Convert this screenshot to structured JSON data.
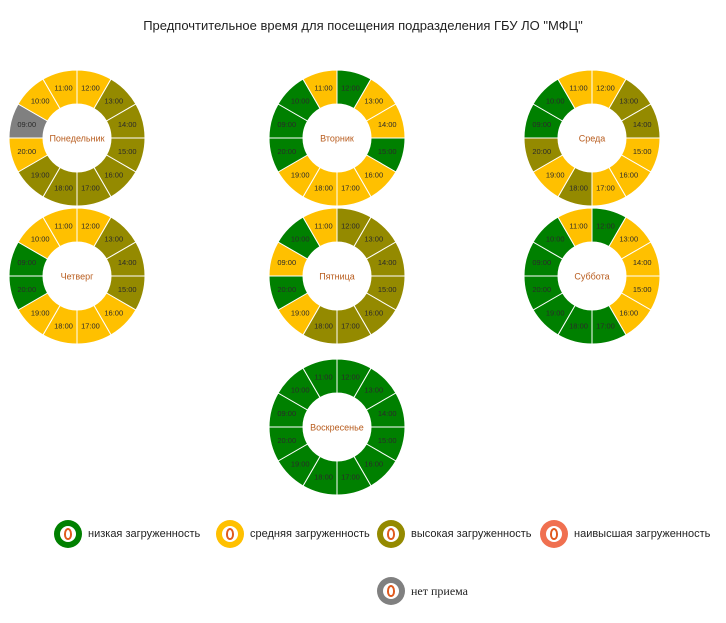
{
  "chart_title": "Предпочтительное время для посещения подразделения ГБУ ЛО \"МФЦ\"",
  "colors": {
    "low": "#008000",
    "medium": "#ffc000",
    "high": "#948a00",
    "highest": "#f07050",
    "closed": "#808080"
  },
  "legend": [
    {
      "key": "low",
      "label": "низкая загруженность"
    },
    {
      "key": "medium",
      "label": "средняя загруженность"
    },
    {
      "key": "high",
      "label": "высокая загруженность"
    },
    {
      "key": "highest",
      "label": "наивысшая загруженность"
    },
    {
      "key": "closed",
      "label": "нет приема"
    }
  ],
  "chart_data": [
    {
      "type": "pie",
      "name": "Понедельник",
      "slices": [
        {
          "hour": "12:00",
          "load": "medium"
        },
        {
          "hour": "13:00",
          "load": "high"
        },
        {
          "hour": "14:00",
          "load": "high"
        },
        {
          "hour": "15:00",
          "load": "high"
        },
        {
          "hour": "16:00",
          "load": "high"
        },
        {
          "hour": "17:00",
          "load": "high"
        },
        {
          "hour": "18:00",
          "load": "high"
        },
        {
          "hour": "19:00",
          "load": "high"
        },
        {
          "hour": "20:00",
          "load": "medium"
        },
        {
          "hour": "09:00",
          "load": "closed"
        },
        {
          "hour": "10:00",
          "load": "medium"
        },
        {
          "hour": "11:00",
          "load": "medium"
        }
      ]
    },
    {
      "type": "pie",
      "name": "Вторник",
      "slices": [
        {
          "hour": "12:00",
          "load": "low"
        },
        {
          "hour": "13:00",
          "load": "medium"
        },
        {
          "hour": "14:00",
          "load": "medium"
        },
        {
          "hour": "15:00",
          "load": "low"
        },
        {
          "hour": "16:00",
          "load": "medium"
        },
        {
          "hour": "17:00",
          "load": "medium"
        },
        {
          "hour": "18:00",
          "load": "medium"
        },
        {
          "hour": "19:00",
          "load": "medium"
        },
        {
          "hour": "20:00",
          "load": "low"
        },
        {
          "hour": "09:00",
          "load": "low"
        },
        {
          "hour": "10:00",
          "load": "low"
        },
        {
          "hour": "11:00",
          "load": "medium"
        }
      ]
    },
    {
      "type": "pie",
      "name": "Среда",
      "slices": [
        {
          "hour": "12:00",
          "load": "medium"
        },
        {
          "hour": "13:00",
          "load": "high"
        },
        {
          "hour": "14:00",
          "load": "high"
        },
        {
          "hour": "15:00",
          "load": "medium"
        },
        {
          "hour": "16:00",
          "load": "medium"
        },
        {
          "hour": "17:00",
          "load": "medium"
        },
        {
          "hour": "18:00",
          "load": "high"
        },
        {
          "hour": "19:00",
          "load": "medium"
        },
        {
          "hour": "20:00",
          "load": "high"
        },
        {
          "hour": "09:00",
          "load": "low"
        },
        {
          "hour": "10:00",
          "load": "low"
        },
        {
          "hour": "11:00",
          "load": "medium"
        }
      ]
    },
    {
      "type": "pie",
      "name": "Четверг",
      "slices": [
        {
          "hour": "12:00",
          "load": "medium"
        },
        {
          "hour": "13:00",
          "load": "high"
        },
        {
          "hour": "14:00",
          "load": "high"
        },
        {
          "hour": "15:00",
          "load": "high"
        },
        {
          "hour": "16:00",
          "load": "medium"
        },
        {
          "hour": "17:00",
          "load": "medium"
        },
        {
          "hour": "18:00",
          "load": "medium"
        },
        {
          "hour": "19:00",
          "load": "medium"
        },
        {
          "hour": "20:00",
          "load": "low"
        },
        {
          "hour": "09:00",
          "load": "low"
        },
        {
          "hour": "10:00",
          "load": "medium"
        },
        {
          "hour": "11:00",
          "load": "medium"
        }
      ]
    },
    {
      "type": "pie",
      "name": "Пятница",
      "slices": [
        {
          "hour": "12:00",
          "load": "high"
        },
        {
          "hour": "13:00",
          "load": "high"
        },
        {
          "hour": "14:00",
          "load": "high"
        },
        {
          "hour": "15:00",
          "load": "high"
        },
        {
          "hour": "16:00",
          "load": "high"
        },
        {
          "hour": "17:00",
          "load": "high"
        },
        {
          "hour": "18:00",
          "load": "high"
        },
        {
          "hour": "19:00",
          "load": "medium"
        },
        {
          "hour": "20:00",
          "load": "low"
        },
        {
          "hour": "09:00",
          "load": "medium"
        },
        {
          "hour": "10:00",
          "load": "low"
        },
        {
          "hour": "11:00",
          "load": "medium"
        }
      ]
    },
    {
      "type": "pie",
      "name": "Суббота",
      "slices": [
        {
          "hour": "12:00",
          "load": "low"
        },
        {
          "hour": "13:00",
          "load": "medium"
        },
        {
          "hour": "14:00",
          "load": "medium"
        },
        {
          "hour": "15:00",
          "load": "medium"
        },
        {
          "hour": "16:00",
          "load": "medium"
        },
        {
          "hour": "17:00",
          "load": "low"
        },
        {
          "hour": "18:00",
          "load": "low"
        },
        {
          "hour": "19:00",
          "load": "low"
        },
        {
          "hour": "20:00",
          "load": "low"
        },
        {
          "hour": "09:00",
          "load": "low"
        },
        {
          "hour": "10:00",
          "load": "low"
        },
        {
          "hour": "11:00",
          "load": "medium"
        }
      ]
    },
    {
      "type": "pie",
      "name": "Воскресенье",
      "slices": [
        {
          "hour": "12:00",
          "load": "low"
        },
        {
          "hour": "13:00",
          "load": "low"
        },
        {
          "hour": "14:00",
          "load": "low"
        },
        {
          "hour": "15:00",
          "load": "low"
        },
        {
          "hour": "16:00",
          "load": "low"
        },
        {
          "hour": "17:00",
          "load": "low"
        },
        {
          "hour": "18:00",
          "load": "low"
        },
        {
          "hour": "19:00",
          "load": "low"
        },
        {
          "hour": "20:00",
          "load": "low"
        },
        {
          "hour": "09:00",
          "load": "low"
        },
        {
          "hour": "10:00",
          "load": "low"
        },
        {
          "hour": "11:00",
          "load": "low"
        }
      ]
    }
  ]
}
